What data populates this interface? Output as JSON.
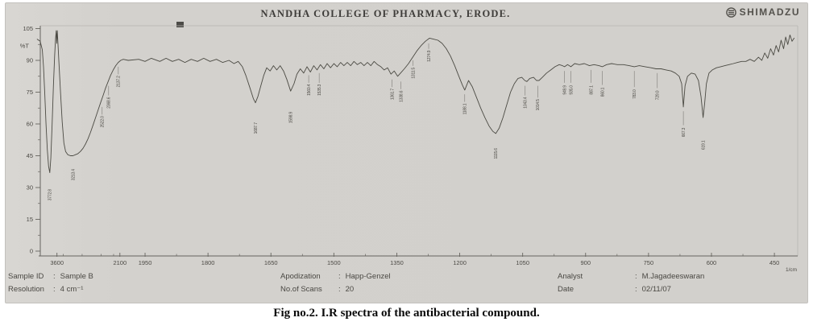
{
  "page": {
    "caption": "Fig no.2. I.R spectra of the antibacterial compound."
  },
  "printout": {
    "header_title": "NANDHA COLLEGE OF PHARMACY, ERODE.",
    "brand": "SHIMADZU",
    "info": {
      "sample_id_label": "Sample ID",
      "sample_id": "Sample B",
      "resolution_label": "Resolution",
      "resolution": "4 cm⁻¹",
      "apodization_label": "Apodization",
      "apodization": "Happ-Genzel",
      "scans_label": "No.of Scans",
      "scans": "20",
      "analyst_label": "Analyst",
      "analyst": "M.Jagadeeswaran",
      "date_label": "Date",
      "date": "02/11/07"
    }
  },
  "chart_data": {
    "type": "line",
    "xlabel": "1/cm",
    "ylabel": "%T",
    "x_axis": {
      "unit": "1/cm",
      "range": [
        4000,
        400
      ],
      "compressed_above": 2000,
      "compression_ratio": 10,
      "major_ticks": [
        3600,
        2100,
        1950,
        1800,
        1650,
        1500,
        1350,
        1200,
        1050,
        900,
        750,
        600,
        450
      ],
      "minor_ticks": [
        3450,
        3000,
        2550,
        2250,
        1875,
        1725,
        1575,
        1425,
        1275,
        1125,
        975,
        825,
        675,
        525
      ]
    },
    "y_axis": {
      "unit": "%T",
      "range": [
        0,
        105
      ],
      "major_ticks": [
        105,
        90,
        75,
        60,
        45,
        30,
        15,
        0
      ],
      "minor_ticks": [
        97.5,
        82.5,
        67.5,
        52.5,
        37.5,
        22.5,
        7.5
      ]
    },
    "series": [
      {
        "name": "transmittance",
        "color": "#4b4a43",
        "points": [
          [
            4070,
            100
          ],
          [
            4000,
            99
          ],
          [
            3950,
            95
          ],
          [
            3920,
            87
          ],
          [
            3890,
            74
          ],
          [
            3860,
            60
          ],
          [
            3830,
            48
          ],
          [
            3800,
            40
          ],
          [
            3770,
            37
          ],
          [
            3745,
            44
          ],
          [
            3715,
            60
          ],
          [
            3685,
            78
          ],
          [
            3655,
            92
          ],
          [
            3635,
            100
          ],
          [
            3618,
            104
          ],
          [
            3605,
            98
          ],
          [
            3592,
            104
          ],
          [
            3578,
            99
          ],
          [
            3555,
            90
          ],
          [
            3515,
            75
          ],
          [
            3475,
            61
          ],
          [
            3435,
            51
          ],
          [
            3395,
            47
          ],
          [
            3340,
            45.5
          ],
          [
            3280,
            45
          ],
          [
            3220,
            45
          ],
          [
            3160,
            45.5
          ],
          [
            3100,
            46
          ],
          [
            3040,
            47
          ],
          [
            2980,
            48.5
          ],
          [
            2920,
            50.5
          ],
          [
            2860,
            53
          ],
          [
            2800,
            56
          ],
          [
            2740,
            59.5
          ],
          [
            2680,
            63
          ],
          [
            2620,
            66.5
          ],
          [
            2560,
            70
          ],
          [
            2500,
            73.5
          ],
          [
            2440,
            77
          ],
          [
            2380,
            80
          ],
          [
            2320,
            83
          ],
          [
            2260,
            85.5
          ],
          [
            2200,
            87.5
          ],
          [
            2140,
            89
          ],
          [
            2080,
            90
          ],
          [
            2020,
            90.5
          ],
          [
            1990,
            90
          ],
          [
            1965,
            90.5
          ],
          [
            1950,
            89.5
          ],
          [
            1935,
            91
          ],
          [
            1915,
            89.5
          ],
          [
            1900,
            91
          ],
          [
            1885,
            89.5
          ],
          [
            1870,
            90.5
          ],
          [
            1855,
            89
          ],
          [
            1840,
            90.5
          ],
          [
            1825,
            89.5
          ],
          [
            1810,
            91
          ],
          [
            1795,
            89.5
          ],
          [
            1780,
            90.5
          ],
          [
            1765,
            89
          ],
          [
            1750,
            90
          ],
          [
            1738,
            88.5
          ],
          [
            1728,
            89.5
          ],
          [
            1718,
            87
          ],
          [
            1710,
            83
          ],
          [
            1700,
            77
          ],
          [
            1692,
            72
          ],
          [
            1687,
            70
          ],
          [
            1681,
            73
          ],
          [
            1674,
            78
          ],
          [
            1667,
            83
          ],
          [
            1660,
            86.5
          ],
          [
            1652,
            85
          ],
          [
            1644,
            87.5
          ],
          [
            1636,
            85.5
          ],
          [
            1628,
            87.5
          ],
          [
            1620,
            85
          ],
          [
            1612,
            81
          ],
          [
            1603,
            75.5
          ],
          [
            1595,
            79
          ],
          [
            1588,
            83.5
          ],
          [
            1580,
            86
          ],
          [
            1572,
            84
          ],
          [
            1564,
            87
          ],
          [
            1556,
            84.5
          ],
          [
            1548,
            87.5
          ],
          [
            1540,
            85.5
          ],
          [
            1532,
            88
          ],
          [
            1524,
            86
          ],
          [
            1516,
            88.5
          ],
          [
            1508,
            86.5
          ],
          [
            1500,
            88.5
          ],
          [
            1492,
            87
          ],
          [
            1484,
            89
          ],
          [
            1476,
            87.5
          ],
          [
            1468,
            89
          ],
          [
            1460,
            87.5
          ],
          [
            1452,
            89.5
          ],
          [
            1444,
            88
          ],
          [
            1436,
            89
          ],
          [
            1428,
            87.5
          ],
          [
            1420,
            89
          ],
          [
            1412,
            87.5
          ],
          [
            1404,
            89.5
          ],
          [
            1396,
            88
          ],
          [
            1388,
            87
          ],
          [
            1380,
            85.5
          ],
          [
            1372,
            86.5
          ],
          [
            1364,
            83.5
          ],
          [
            1356,
            85
          ],
          [
            1348,
            82.5
          ],
          [
            1341,
            84
          ],
          [
            1332,
            86
          ],
          [
            1322,
            88.5
          ],
          [
            1312,
            91.5
          ],
          [
            1302,
            94.5
          ],
          [
            1292,
            97
          ],
          [
            1282,
            99
          ],
          [
            1272,
            100.5
          ],
          [
            1262,
            100
          ],
          [
            1252,
            99.5
          ],
          [
            1242,
            98
          ],
          [
            1232,
            95.5
          ],
          [
            1222,
            92
          ],
          [
            1212,
            87.5
          ],
          [
            1202,
            82.5
          ],
          [
            1194,
            78.5
          ],
          [
            1188,
            76
          ],
          [
            1183,
            78.5
          ],
          [
            1179,
            80.5
          ],
          [
            1170,
            77.5
          ],
          [
            1160,
            72.5
          ],
          [
            1150,
            67.5
          ],
          [
            1140,
            63
          ],
          [
            1130,
            59
          ],
          [
            1121,
            56.5
          ],
          [
            1114,
            55.5
          ],
          [
            1106,
            58
          ],
          [
            1097,
            63
          ],
          [
            1088,
            69
          ],
          [
            1079,
            75
          ],
          [
            1070,
            79
          ],
          [
            1061,
            81.5
          ],
          [
            1052,
            82
          ],
          [
            1045,
            80.5
          ],
          [
            1040,
            80
          ],
          [
            1033,
            81.5
          ],
          [
            1024,
            82
          ],
          [
            1017,
            80.5
          ],
          [
            1011,
            80.5
          ],
          [
            1003,
            82
          ],
          [
            993,
            84
          ],
          [
            983,
            85.5
          ],
          [
            973,
            87
          ],
          [
            963,
            88
          ],
          [
            955,
            87.5
          ],
          [
            950,
            87
          ],
          [
            943,
            88
          ],
          [
            935,
            87
          ],
          [
            926,
            88.5
          ],
          [
            915,
            88
          ],
          [
            903,
            88.5
          ],
          [
            891,
            87.5
          ],
          [
            880,
            88
          ],
          [
            868,
            87.5
          ],
          [
            860,
            87
          ],
          [
            850,
            88
          ],
          [
            838,
            88.5
          ],
          [
            824,
            88
          ],
          [
            810,
            88
          ],
          [
            796,
            87.5
          ],
          [
            784,
            87
          ],
          [
            772,
            87.5
          ],
          [
            758,
            87
          ],
          [
            744,
            86.5
          ],
          [
            732,
            86
          ],
          [
            720,
            86
          ],
          [
            708,
            85.5
          ],
          [
            696,
            85
          ],
          [
            686,
            84
          ],
          [
            677,
            82.5
          ],
          [
            671,
            79
          ],
          [
            667,
            68
          ],
          [
            663,
            78
          ],
          [
            657,
            82.5
          ],
          [
            648,
            84
          ],
          [
            639,
            83.5
          ],
          [
            631,
            80.5
          ],
          [
            625,
            73
          ],
          [
            620,
            63
          ],
          [
            616,
            70
          ],
          [
            612,
            79
          ],
          [
            606,
            84
          ],
          [
            598,
            85.5
          ],
          [
            588,
            86.5
          ],
          [
            578,
            87
          ],
          [
            568,
            87.5
          ],
          [
            558,
            88
          ],
          [
            548,
            88.5
          ],
          [
            538,
            89
          ],
          [
            528,
            89.5
          ],
          [
            518,
            89.5
          ],
          [
            508,
            90.5
          ],
          [
            498,
            89.5
          ],
          [
            488,
            91.5
          ],
          [
            480,
            90
          ],
          [
            473,
            93.5
          ],
          [
            466,
            91
          ],
          [
            459,
            95.5
          ],
          [
            452,
            92.5
          ],
          [
            446,
            97
          ],
          [
            440,
            94
          ],
          [
            434,
            99.5
          ],
          [
            428,
            95.5
          ],
          [
            423,
            101
          ],
          [
            418,
            97.5
          ],
          [
            413,
            102
          ],
          [
            408,
            99
          ],
          [
            403,
            100.5
          ]
        ]
      }
    ],
    "peak_labels": [
      {
        "text": "3772.8",
        "wavenumber": 3772,
        "t": 26.5
      },
      {
        "text": "3213.4",
        "wavenumber": 3213,
        "t": 36
      },
      {
        "text": "2522.0",
        "wavenumber": 2522,
        "t": 61,
        "leader_t": 68
      },
      {
        "text": "2368.6",
        "wavenumber": 2368,
        "t": 70,
        "leader_t": 78
      },
      {
        "text": "2137.2",
        "wavenumber": 2137,
        "t": 80,
        "leader_t": 87
      },
      {
        "text": "1687.7",
        "wavenumber": 1687,
        "t": 58
      },
      {
        "text": "1598.9",
        "wavenumber": 1603,
        "t": 63
      },
      {
        "text": "1560.4",
        "wavenumber": 1560,
        "t": 76,
        "leader_t": 83
      },
      {
        "text": "1535.3",
        "wavenumber": 1535,
        "t": 76,
        "leader_t": 84
      },
      {
        "text": "1361.7",
        "wavenumber": 1361,
        "t": 74,
        "leader_t": 81
      },
      {
        "text": "1338.6",
        "wavenumber": 1340,
        "t": 73,
        "leader_t": 80
      },
      {
        "text": "1311.5",
        "wavenumber": 1311,
        "t": 84,
        "leader_t": 90
      },
      {
        "text": "1274.9",
        "wavenumber": 1274,
        "t": 92,
        "leader_t": 98
      },
      {
        "text": "1188.1",
        "wavenumber": 1188,
        "t": 67,
        "leader_t": 74
      },
      {
        "text": "1115.6",
        "wavenumber": 1114,
        "t": 46
      },
      {
        "text": "1043.4",
        "wavenumber": 1044,
        "t": 70,
        "leader_t": 78
      },
      {
        "text": "1014.5",
        "wavenumber": 1014,
        "t": 69,
        "leader_t": 78
      },
      {
        "text": "949.9",
        "wavenumber": 950,
        "t": 76,
        "leader_t": 85
      },
      {
        "text": "935.0",
        "wavenumber": 935,
        "t": 76,
        "leader_t": 85
      },
      {
        "text": "887.1",
        "wavenumber": 887,
        "t": 76,
        "leader_t": 85.5
      },
      {
        "text": "860.1",
        "wavenumber": 860,
        "t": 75,
        "leader_t": 85
      },
      {
        "text": "783.0",
        "wavenumber": 784,
        "t": 74,
        "leader_t": 85
      },
      {
        "text": "729.0",
        "wavenumber": 729,
        "t": 73.5,
        "leader_t": 84
      },
      {
        "text": "667.3",
        "wavenumber": 667,
        "t": 56,
        "leader_t": 66
      },
      {
        "text": "619.1",
        "wavenumber": 620,
        "t": 50
      }
    ]
  }
}
